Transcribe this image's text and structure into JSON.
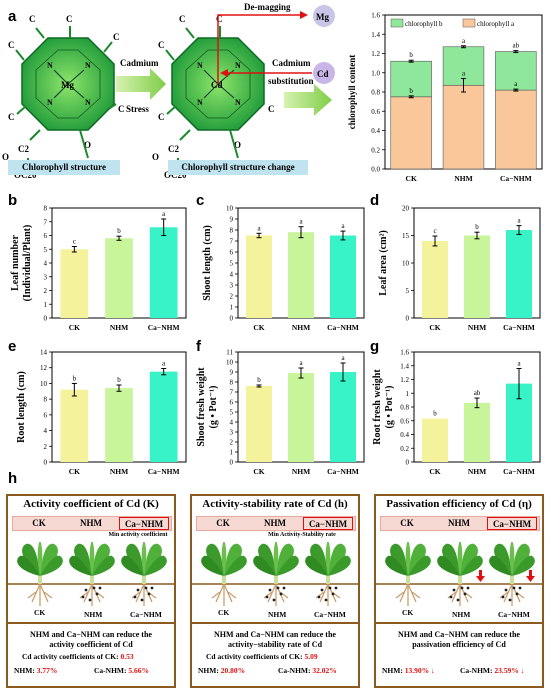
{
  "panel_labels": [
    "a",
    "b",
    "c",
    "d",
    "e",
    "f",
    "g",
    "h"
  ],
  "panel_a": {
    "structure_caption": "Chlorophyll structure",
    "change_caption": "Chlorophyll structure change",
    "stress_top": "Cadmium",
    "stress_bottom": "Stress",
    "demagging": "De-magging",
    "mg_badge": "Mg",
    "cd_badge": "Cd",
    "subst_top": "Cadmium",
    "subst_bottom": "substitution",
    "center_mg": "Mg",
    "center_cd": "Cd",
    "atom_n": "N",
    "atom_c": "C",
    "atom_o": "O",
    "c2": "C2",
    "oc20": "OC20"
  },
  "colors": {
    "ck": "#f4f29a",
    "nhm": "#c8f59a",
    "canhm": "#38f2c8",
    "chl_a": "#fac79a",
    "chl_b": "#8ee79a",
    "frame": "#8b5a1e",
    "red": "#e01010"
  },
  "chart_data": [
    {
      "id": "a",
      "type": "bar",
      "ylabel": "chlorophyll content",
      "categories": [
        "CK",
        "NHM",
        "Ca−NHM"
      ],
      "ylim": [
        0,
        1.6
      ],
      "yticks": [
        0.0,
        0.2,
        0.4,
        0.6,
        0.8,
        1.0,
        1.2,
        1.4,
        1.6
      ],
      "series": [
        {
          "name": "chlorophyll a",
          "values": [
            0.75,
            0.87,
            0.82
          ],
          "err": [
            0.01,
            0.07,
            0.01
          ],
          "letters": [
            "b",
            "a",
            "a"
          ]
        },
        {
          "name": "chlorophyll b",
          "values": [
            0.37,
            0.4,
            0.4
          ],
          "err": [
            0.01,
            0.01,
            0.01
          ],
          "letters": [
            "b",
            "a",
            "ab"
          ]
        }
      ]
    },
    {
      "id": "b",
      "type": "bar",
      "ylabel": "Leaf number",
      "ylabel2": "(Individual/Plant)",
      "categories": [
        "CK",
        "NHM",
        "Ca−NHM"
      ],
      "values": [
        5.0,
        5.8,
        6.6
      ],
      "err": [
        0.2,
        0.15,
        0.6
      ],
      "letters": [
        "c",
        "b",
        "a"
      ],
      "ylim": [
        0,
        8
      ],
      "yticks": [
        0,
        1,
        2,
        3,
        4,
        5,
        6,
        7,
        8
      ]
    },
    {
      "id": "c",
      "type": "bar",
      "ylabel": "Shoot length (cm)",
      "categories": [
        "CK",
        "NHM",
        "Ca−NHM"
      ],
      "values": [
        7.5,
        7.8,
        7.5
      ],
      "err": [
        0.2,
        0.5,
        0.4
      ],
      "letters": [
        "a",
        "a",
        "a"
      ],
      "ylim": [
        0,
        10
      ],
      "yticks": [
        0,
        1,
        2,
        3,
        4,
        5,
        6,
        7,
        8,
        9,
        10
      ]
    },
    {
      "id": "d",
      "type": "bar",
      "ylabel": "Leaf area (cm²)",
      "categories": [
        "CK",
        "NHM",
        "Ca−NHM"
      ],
      "values": [
        14.0,
        15.0,
        16.0
      ],
      "err": [
        0.9,
        0.6,
        0.8
      ],
      "letters": [
        "c",
        "b",
        "a"
      ],
      "ylim": [
        0,
        20
      ],
      "yticks": [
        0,
        5,
        10,
        15,
        20
      ]
    },
    {
      "id": "e",
      "type": "bar",
      "ylabel": "Root length (cm)",
      "categories": [
        "CK",
        "NHM",
        "Ca−NHM"
      ],
      "values": [
        9.2,
        9.4,
        11.5
      ],
      "err": [
        0.8,
        0.4,
        0.4
      ],
      "letters": [
        "b",
        "b",
        "a"
      ],
      "ylim": [
        0,
        14
      ],
      "yticks": [
        0,
        2,
        4,
        6,
        8,
        10,
        12,
        14
      ]
    },
    {
      "id": "f",
      "type": "bar",
      "ylabel": "Shoot fresh weight",
      "ylabel2": "(g • Pot⁻¹)",
      "categories": [
        "CK",
        "NHM",
        "Ca−NHM"
      ],
      "values": [
        7.6,
        8.9,
        9.0
      ],
      "err": [
        0.1,
        0.5,
        0.9
      ],
      "letters": [
        "b",
        "a",
        "a"
      ],
      "ylim": [
        0,
        11
      ],
      "yticks": [
        0,
        1,
        2,
        3,
        4,
        5,
        6,
        7,
        8,
        9,
        10,
        11
      ]
    },
    {
      "id": "g",
      "type": "bar",
      "ylabel": "Root fresh weight",
      "ylabel2": "(g • Pot⁻¹)",
      "categories": [
        "CK",
        "NHM",
        "Ca−NHM"
      ],
      "values": [
        0.63,
        0.86,
        1.14
      ],
      "err": [
        0.0,
        0.07,
        0.22
      ],
      "letters": [
        "b",
        "ab",
        "a"
      ],
      "ylim": [
        0,
        1.6
      ],
      "yticks": [
        0.0,
        0.2,
        0.4,
        0.6,
        0.8,
        1.0,
        1.2,
        1.4,
        1.6
      ]
    }
  ],
  "panel_h": [
    {
      "title": "Activity coefficient of Cd (K)",
      "headers": [
        "CK",
        "NHM",
        "Ca−NHM"
      ],
      "note": "Min activity coefficient",
      "plant_labels": [
        "CK",
        "NHM",
        "Ca−NHM"
      ],
      "text1": "NHM and Ca−NHM can reduce the",
      "text2": "activity coefficient of  Cd",
      "stat_label": "Cd activity coefficients of CK: ",
      "stat_value": "0.53",
      "nhm_label": "NHM: ",
      "nhm_value": "3.77%",
      "canhm_label": "Ca-NHM: ",
      "canhm_value": "5.66%"
    },
    {
      "title": "Activity-stability rate of Cd (h)",
      "headers": [
        "CK",
        "NHM",
        "Ca−NHM"
      ],
      "note": "Min Activity-Stability rate",
      "plant_labels": [
        "CK",
        "NHM",
        "Ca−NHM"
      ],
      "text1": "NHM and Ca−NHM can reduce the",
      "text2": "activity−stability rate of  Cd",
      "stat_label": "Cd activity coefficients of CK: ",
      "stat_value": "5.09",
      "nhm_label": "NHM: ",
      "nhm_value": "20.80%",
      "canhm_label": "Ca-NHM: ",
      "canhm_value": "32.02%"
    },
    {
      "title": "Passivation efficiency of Cd (η)",
      "headers": [
        "CK",
        "NHM",
        "Ca−NHM"
      ],
      "plant_labels": [
        "CK",
        "NHM",
        "Ca−NHM"
      ],
      "text1": "NHM and Ca−NHM can reduce the",
      "text2": "passivation efficiency of  Cd",
      "nhm_label": "NHM: ",
      "nhm_value": "13.90%",
      "canhm_label": "Ca-NHM: ",
      "canhm_value": "23.59%"
    }
  ]
}
